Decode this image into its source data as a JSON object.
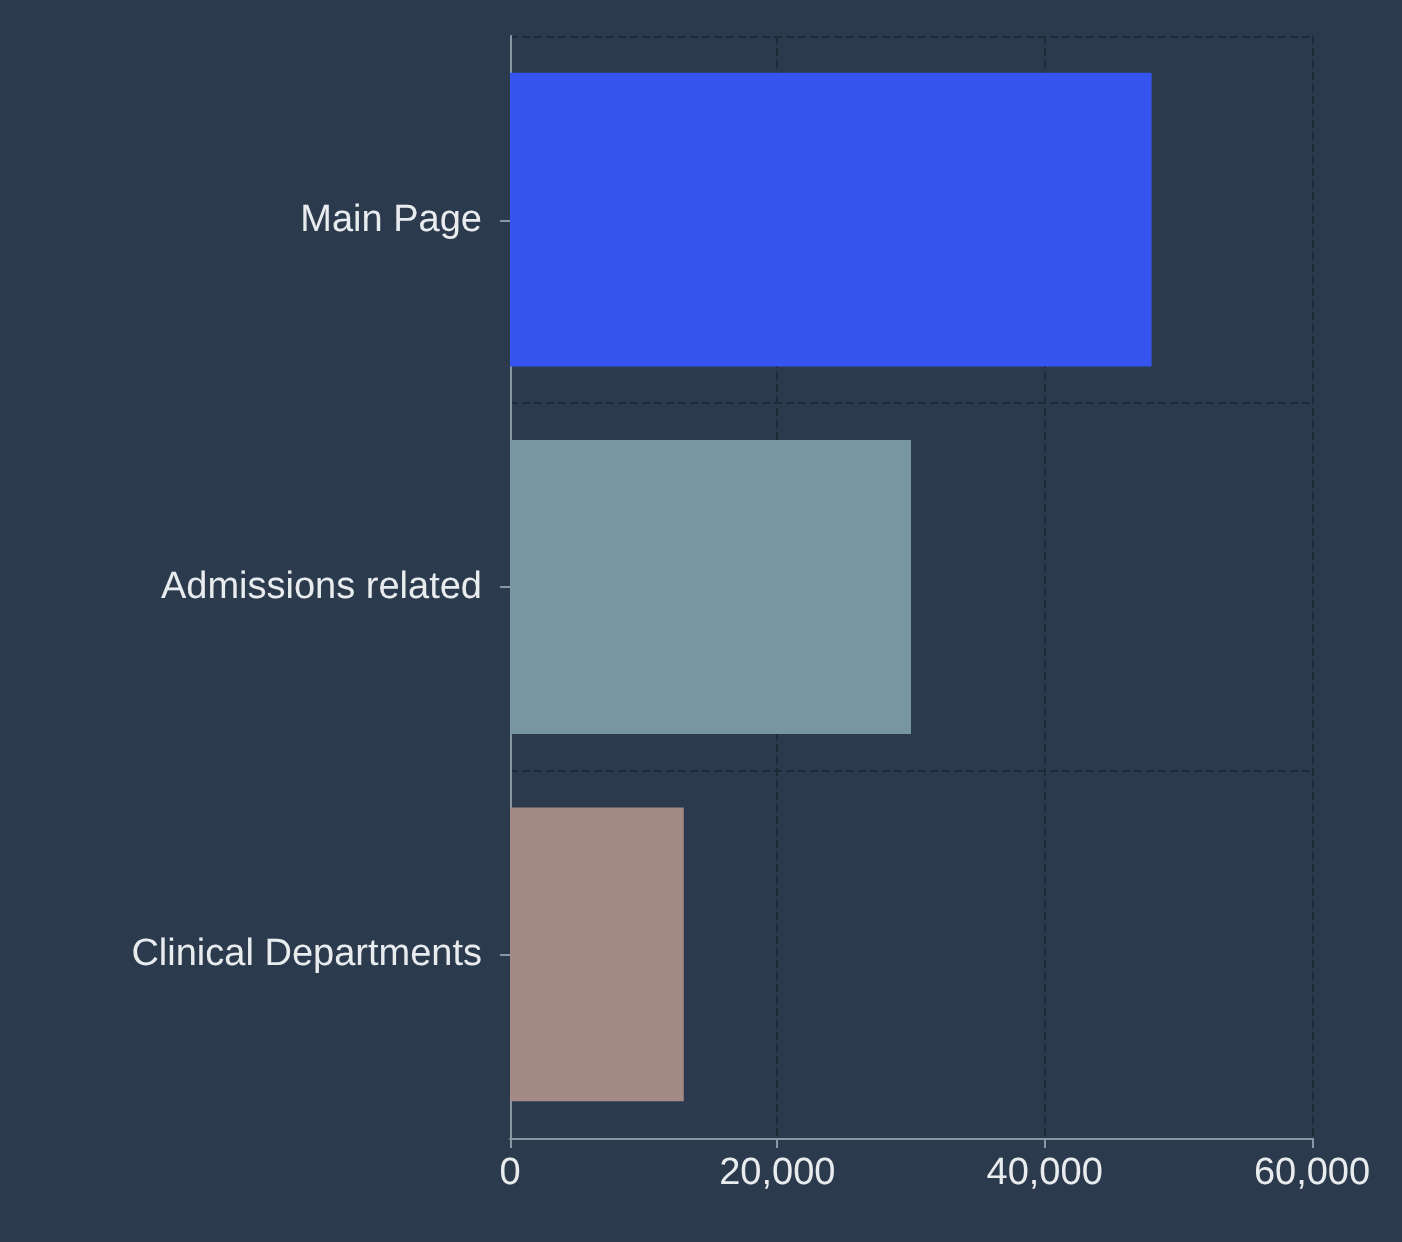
{
  "chart_data": {
    "type": "bar",
    "orientation": "horizontal",
    "categories": [
      "Main Page",
      "Admissions related",
      "Clinical Departments"
    ],
    "values": [
      48000,
      30000,
      13000
    ],
    "colors": [
      "#3654ef",
      "#7895a2",
      "#a38a84"
    ],
    "xlim": [
      0,
      60000
    ],
    "xticks": [
      {
        "value": 0,
        "label": "0"
      },
      {
        "value": 20000,
        "label": "20,000"
      },
      {
        "value": 40000,
        "label": "40,000"
      },
      {
        "value": 60000,
        "label": "60,000"
      }
    ],
    "grid": true
  }
}
